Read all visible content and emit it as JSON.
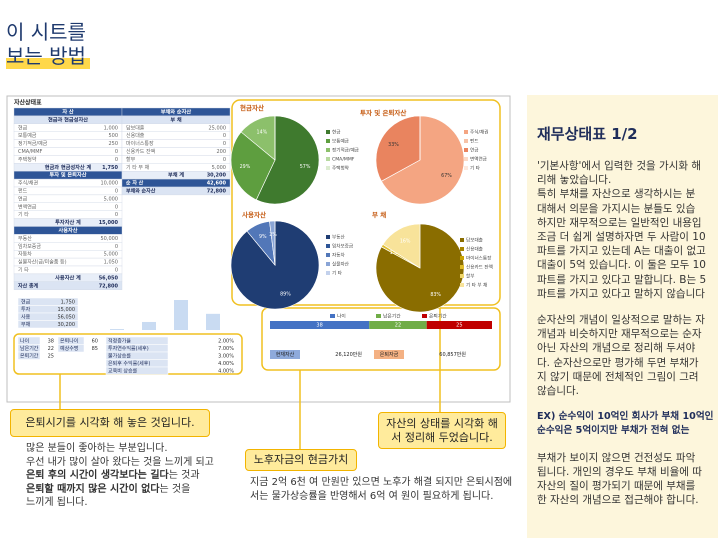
{
  "header": {
    "line1": "이 시트를",
    "line2": "보는 방법"
  },
  "sheet": {
    "title": "자산상태표",
    "left": {
      "header": "자 산",
      "sections": [
        {
          "title": "현금과 현금성자산",
          "rows": [
            [
              "현금",
              "1,000"
            ],
            [
              "보통예금",
              "500"
            ],
            [
              "정기적금/예금",
              "250"
            ],
            [
              "CMA/MMF",
              "0"
            ],
            [
              "주택청약",
              "0"
            ]
          ],
          "total": [
            "현금과 현금성자산 계",
            "1,750"
          ]
        },
        {
          "title": "투자 및 은퇴자산",
          "rows": [
            [
              "주식/채권",
              "10,000"
            ],
            [
              "펀드",
              "0"
            ],
            [
              "연금",
              "5,000"
            ],
            [
              "변액연금",
              "0"
            ],
            [
              "기 타",
              "0"
            ]
          ],
          "total": [
            "투자자산 계",
            "15,000"
          ]
        },
        {
          "title": "사용자산",
          "rows": [
            [
              "부동산",
              "50,000"
            ],
            [
              "임차보증금",
              "0"
            ],
            [
              "자동차",
              "5,000"
            ],
            [
              "실물자산(금/미술품 등)",
              "1,050"
            ],
            [
              "기 타",
              "0"
            ]
          ],
          "total": [
            "사용자산 계",
            "56,050"
          ]
        }
      ],
      "grand": [
        "자산 총계",
        "72,800"
      ]
    },
    "right": {
      "header": "부채와 순자산",
      "sections": [
        {
          "title": "부 채",
          "rows": [
            [
              "담보대출",
              "25,000"
            ],
            [
              "신용대출",
              "0"
            ],
            [
              "마이너스통장",
              "0"
            ],
            [
              "신용카드 잔액",
              "200"
            ],
            [
              "할부",
              "0"
            ],
            [
              "기 타 부 채",
              "5,000"
            ]
          ],
          "total": [
            "부채 계",
            "30,200"
          ]
        }
      ],
      "net": [
        "순 자 산",
        "42,600"
      ],
      "grand": [
        "부채와 순자산",
        "72,800"
      ]
    },
    "summary": {
      "labels": [
        "현금",
        "투자",
        "사용",
        "부채"
      ],
      "values": [
        1750,
        15000,
        56050,
        30200
      ],
      "value_labels": [
        "1,750",
        "15,000",
        "56,050",
        "30,200"
      ]
    },
    "ages": [
      [
        "나이",
        "38"
      ],
      [
        "남은기간",
        "22"
      ],
      [
        "은퇴기간",
        "25"
      ]
    ],
    "ages2": [
      [
        "은퇴나이",
        "60"
      ],
      [
        "예상수명",
        "85"
      ]
    ],
    "rates": [
      [
        "적정증가율",
        "2.00%"
      ],
      [
        "투자연수익률(세후)",
        "7.00%"
      ],
      [
        "물가상승률",
        "3.00%"
      ],
      [
        "은퇴후 수익률(세후)",
        "4.00%"
      ],
      [
        "교육비 상승률",
        "4.00%"
      ]
    ],
    "timeline": {
      "series": [
        {
          "name": "나이",
          "color": "#4472c4",
          "value": 38
        },
        {
          "name": "남은기간",
          "color": "#70ad47",
          "value": 22
        },
        {
          "name": "은퇴기간",
          "color": "#c00000",
          "value": 25
        }
      ]
    },
    "money": [
      [
        "현재자산",
        "26,120만원"
      ],
      [
        "은퇴자금",
        "60,857만원"
      ]
    ]
  },
  "pies": [
    {
      "title": "현금자산",
      "names": [
        "현금",
        "보통예금",
        "정기적금/예금",
        "CMA/MMF",
        "주택청약"
      ],
      "values": [
        57,
        29,
        14,
        0,
        0
      ],
      "value_labels": [
        "57%",
        "29%",
        "14%",
        null,
        null
      ],
      "colors": [
        "#3f7a2e",
        "#5e9e3f",
        "#8cc06b",
        "#b7d9a0",
        "#dcecd0"
      ]
    },
    {
      "title": "투자 및 은퇴자산",
      "names": [
        "주식/채권",
        "펀드",
        "연금",
        "변액연금",
        "기 타"
      ],
      "values": [
        67,
        0,
        33,
        0,
        0
      ],
      "value_labels": [
        "67%",
        null,
        "33%",
        null,
        null
      ],
      "colors": [
        "#f4a582",
        "#f7c2a6",
        "#e9845f",
        "#fbd9c6",
        "#fde9dd"
      ]
    },
    {
      "title": "사용자산",
      "names": [
        "부동산",
        "임차보증금",
        "자동차",
        "실물자산",
        "기 타"
      ],
      "values": [
        89,
        0,
        9,
        2,
        0
      ],
      "value_labels": [
        "89%",
        null,
        "9%",
        "2%",
        null
      ],
      "colors": [
        "#1f3d73",
        "#2e5597",
        "#5277b8",
        "#8aa5d6",
        "#c3d1ec"
      ]
    },
    {
      "title": "부 채",
      "names": [
        "담보대출",
        "신용대출",
        "마이너스통장",
        "신용카드 잔액",
        "할부",
        "기 타 부 채"
      ],
      "values": [
        83,
        0,
        0,
        1,
        0,
        16
      ],
      "value_labels": [
        "83%",
        null,
        null,
        "1%",
        null,
        "16%"
      ],
      "colors": [
        "#8a6d00",
        "#a88600",
        "#c9a300",
        "#e0bd2a",
        "#efd66b",
        "#f8e39a"
      ]
    }
  ],
  "callouts": {
    "retire": {
      "title": "은퇴시기를 시각화 해 놓은 것입니다.",
      "lines": [
        [
          {
            "text": "많은 분들이 좋아하는 부분입니다.",
            "bold": false
          }
        ],
        [
          {
            "text": "우선 내가 많이 살아 왔다는 것을 느끼게 되고",
            "bold": false
          }
        ],
        [
          {
            "text": "은퇴 후의 시간이 생각보다는 길다",
            "bold": true
          },
          {
            "text": "는 것과",
            "bold": false
          }
        ],
        [
          {
            "text": "은퇴할 때까지 많은 시간이 없다",
            "bold": true
          },
          {
            "text": "는 것을",
            "bold": false
          }
        ],
        [
          {
            "text": "느끼게 됩니다.",
            "bold": false
          }
        ]
      ]
    },
    "cash": {
      "title": "노후자금의 현금가치",
      "lines": [
        "지금 2억 6천 여 만원만 있으면 노후가 해결 되지만 은퇴시점에",
        "서는 물가상승률을 반영해서 6억 여 원이 필요하게 됩니다."
      ]
    },
    "asset": {
      "title": "자산의 상태를 시각화 해서 정리해 두었습니다."
    }
  },
  "panel": {
    "title": "재무상태표 1/2",
    "paragraphs": [
      [
        "'기본사항'에서 입력한 것을 가시화 해",
        "리해 놓았습니다.",
        "특히 부채를 자산으로 생각하시는 분",
        "대해서 의문을 가지시는 분들도 있습",
        "하지만 재무적으로는 일반적인 내용입",
        "조금 더 쉽게 설명하자면 두 사람이 10",
        "파트를 가지고 있는데 A는 대출이 없고",
        "대출이 5억 있습니다. 이 둘은 모두 10",
        "파트를 가지고 있다고 말합니다. B는 5",
        "파트를 가지고 있다고 말하지 않습니다"
      ],
      [
        "순자산의 개념이 일상적으로 말하는 자",
        "개념과 비슷하지만 재무적으로는 순자",
        "아닌 자산의 개념으로 정리해 두셔야",
        "다. 순자산으로만 평가해 두면 부채가",
        "지 않기 때문에 전체적인 그림이 그려",
        "않습니다."
      ]
    ],
    "example": [
      "EX) 순수익이 10억인 회사가 부채 10억인",
      "      순수익은 5억이지만 부채가 전혀 없는"
    ],
    "closing": [
      "부채가 보이지 않으면 건전성도 파악",
      "됩니다. 개인의 경우도 부채 비율에 따",
      "자산의 질이 평가되기 때문에 부채를",
      "한 자산의 개념으로 접근해야 합니다."
    ]
  }
}
